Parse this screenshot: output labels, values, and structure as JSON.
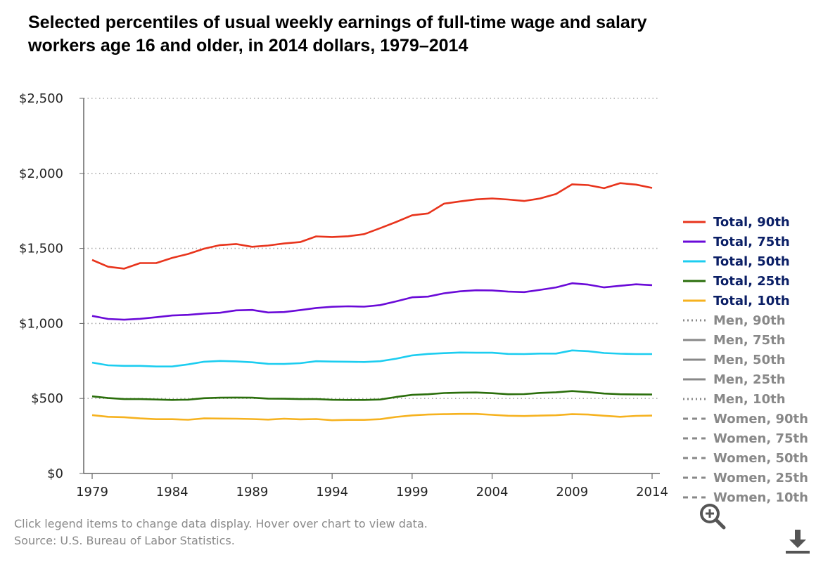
{
  "title_line1": "Selected percentiles of usual weekly earnings of full-time wage and salary",
  "title_line2": "workers age 16 and older, in 2014 dollars, 1979–2014",
  "footer": {
    "instructions": "Click legend items to change data display. Hover over chart to view data.",
    "source": "Source: U.S. Bureau of Labor Statistics."
  },
  "icons": {
    "zoom": "zoom-icon",
    "download": "download-icon"
  },
  "chart_data": {
    "type": "line",
    "title": "Selected percentiles of usual weekly earnings of full-time wage and salary workers age 16 and older, in 2014 dollars, 1979–2014",
    "xlabel": "",
    "ylabel": "",
    "x": [
      1979,
      1980,
      1981,
      1982,
      1983,
      1984,
      1985,
      1986,
      1987,
      1988,
      1989,
      1990,
      1991,
      1992,
      1993,
      1994,
      1995,
      1996,
      1997,
      1998,
      1999,
      2000,
      2001,
      2002,
      2003,
      2004,
      2005,
      2006,
      2007,
      2008,
      2009,
      2010,
      2011,
      2012,
      2013,
      2014
    ],
    "x_ticks": [
      "1979",
      "1984",
      "1989",
      "1994",
      "1999",
      "2004",
      "2009",
      "2014"
    ],
    "x_tick_values": [
      1979,
      1984,
      1989,
      1994,
      1999,
      2004,
      2009,
      2014
    ],
    "ylim": [
      0,
      2500
    ],
    "y_ticks": [
      "$0",
      "$500",
      "$1,000",
      "$1,500",
      "$2,000",
      "$2,500"
    ],
    "y_tick_values": [
      0,
      500,
      1000,
      1500,
      2000,
      2500
    ],
    "grid": "horizontal dotted",
    "legend_placement": "right",
    "series": [
      {
        "name": "Total, 90th",
        "color": "#e8341c",
        "visible": true,
        "values": [
          1423,
          1378,
          1365,
          1402,
          1402,
          1437,
          1463,
          1498,
          1522,
          1529,
          1511,
          1519,
          1533,
          1542,
          1580,
          1576,
          1581,
          1595,
          1635,
          1676,
          1721,
          1733,
          1798,
          1813,
          1827,
          1833,
          1826,
          1816,
          1833,
          1863,
          1927,
          1922,
          1901,
          1935,
          1925,
          1903
        ]
      },
      {
        "name": "Total, 75th",
        "color": "#6a0ad8",
        "visible": true,
        "values": [
          1050,
          1030,
          1025,
          1031,
          1041,
          1053,
          1057,
          1066,
          1071,
          1087,
          1090,
          1073,
          1076,
          1089,
          1103,
          1111,
          1114,
          1112,
          1122,
          1147,
          1174,
          1179,
          1201,
          1214,
          1221,
          1220,
          1212,
          1209,
          1224,
          1240,
          1268,
          1259,
          1240,
          1251,
          1261,
          1255
        ]
      },
      {
        "name": "Total, 50th",
        "color": "#1ccdf0",
        "visible": true,
        "values": [
          739,
          721,
          717,
          717,
          713,
          713,
          727,
          745,
          750,
          747,
          741,
          731,
          730,
          735,
          748,
          746,
          745,
          743,
          748,
          765,
          787,
          797,
          802,
          806,
          805,
          805,
          797,
          796,
          799,
          799,
          820,
          815,
          803,
          798,
          796,
          796
        ]
      },
      {
        "name": "Total, 25th",
        "color": "#2a6e0b",
        "visible": true,
        "values": [
          514,
          503,
          496,
          496,
          493,
          490,
          492,
          502,
          505,
          506,
          505,
          499,
          498,
          496,
          496,
          491,
          490,
          490,
          493,
          510,
          524,
          528,
          536,
          539,
          540,
          535,
          528,
          529,
          537,
          541,
          549,
          542,
          533,
          528,
          527,
          526
        ]
      },
      {
        "name": "Total, 10th",
        "color": "#f6b21f",
        "visible": true,
        "values": [
          389,
          378,
          375,
          367,
          362,
          362,
          358,
          367,
          366,
          365,
          363,
          359,
          365,
          361,
          363,
          355,
          357,
          357,
          362,
          377,
          387,
          393,
          395,
          397,
          397,
          391,
          385,
          383,
          386,
          388,
          395,
          393,
          385,
          378,
          384,
          386
        ]
      },
      {
        "name": "Men, 90th",
        "color": "#888888",
        "visible": false
      },
      {
        "name": "Men, 75th",
        "color": "#888888",
        "visible": false
      },
      {
        "name": "Men, 50th",
        "color": "#888888",
        "visible": false
      },
      {
        "name": "Men, 25th",
        "color": "#888888",
        "visible": false
      },
      {
        "name": "Men, 10th",
        "color": "#888888",
        "visible": false
      },
      {
        "name": "Women, 90th",
        "color": "#888888",
        "visible": false
      },
      {
        "name": "Women, 75th",
        "color": "#888888",
        "visible": false
      },
      {
        "name": "Women, 50th",
        "color": "#888888",
        "visible": false
      },
      {
        "name": "Women, 25th",
        "color": "#888888",
        "visible": false
      },
      {
        "name": "Women, 10th",
        "color": "#888888",
        "visible": false
      }
    ]
  }
}
